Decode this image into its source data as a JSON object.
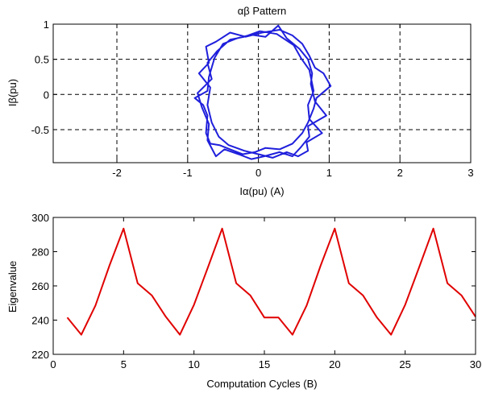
{
  "chart_data": [
    {
      "type": "line",
      "title": "αβ Pattern",
      "xlabel": "Iα(pu)   (A)",
      "ylabel": "Iβ(pu)",
      "xlim": [
        -2.9,
        3.0
      ],
      "ylim": [
        -0.97,
        1.0
      ],
      "xticks": [
        "-2",
        "-1",
        "0",
        "1",
        "2",
        "3"
      ],
      "xtick_values": [
        -2,
        -1,
        0,
        1,
        2,
        3
      ],
      "yticks": [
        "1",
        "0.5",
        "0",
        "-0.5"
      ],
      "ytick_values": [
        1,
        0.5,
        0,
        -0.5
      ],
      "grid": true,
      "grid_style": "dashed",
      "series": [
        {
          "color": "#1f1fdc",
          "x": [
            0.05,
            0.3,
            0.48,
            0.62,
            0.72,
            0.8,
            0.92,
            1.02,
            0.82,
            0.78,
            0.7,
            0.62,
            0.48,
            0.3,
            0.1,
            -0.05,
            -0.22,
            -0.4,
            -0.55,
            -0.68,
            -0.74,
            -0.72,
            -0.78,
            -0.9,
            -0.72,
            -0.7,
            -0.62,
            -0.5,
            -0.3,
            -0.1,
            0.1,
            0.28,
            0.4,
            0.58,
            0.7,
            0.76,
            0.74,
            0.8,
            0.96,
            0.7,
            0.72,
            0.6,
            0.48,
            0.3,
            0.08,
            -0.1,
            -0.28,
            -0.48,
            -0.6,
            -0.72,
            -0.7,
            -0.8,
            -0.86,
            -0.66,
            -0.72,
            -0.58,
            -0.4,
            -0.2,
            0.02,
            0.26,
            0.5,
            0.6,
            0.72,
            0.78,
            0.7,
            0.72,
            0.9,
            0.68,
            0.7,
            0.56,
            0.4,
            0.2,
            0.0,
            -0.2,
            -0.42,
            -0.56,
            -0.66,
            -0.72,
            -0.68,
            -0.84,
            -0.7,
            -0.74,
            -0.6,
            -0.4,
            -0.18,
            0.05
          ],
          "y": [
            0.88,
            0.92,
            0.84,
            0.72,
            0.55,
            0.38,
            0.3,
            0.12,
            -0.05,
            -0.2,
            -0.4,
            -0.55,
            -0.7,
            -0.78,
            -0.76,
            -0.82,
            -0.85,
            -0.78,
            -0.72,
            -0.7,
            -0.55,
            -0.3,
            -0.15,
            -0.05,
            0.05,
            0.25,
            0.52,
            0.72,
            0.8,
            0.85,
            0.82,
            0.98,
            0.8,
            0.65,
            0.5,
            0.3,
            0.15,
            -0.1,
            -0.3,
            -0.45,
            -0.6,
            -0.75,
            -0.88,
            -0.82,
            -0.88,
            -0.92,
            -0.85,
            -0.78,
            -0.88,
            -0.65,
            -0.42,
            -0.18,
            0.02,
            0.22,
            0.45,
            0.62,
            0.78,
            0.82,
            0.9,
            0.86,
            0.7,
            0.52,
            0.35,
            0.05,
            -0.15,
            -0.35,
            -0.55,
            -0.68,
            -0.8,
            -0.88,
            -0.82,
            -0.9,
            -0.85,
            -0.8,
            -0.72,
            -0.6,
            -0.4,
            -0.15,
            0.1,
            0.3,
            0.45,
            0.68,
            0.75,
            0.88,
            0.82,
            0.88
          ]
        }
      ]
    },
    {
      "type": "line",
      "title": "",
      "xlabel": "Computation Cycles    (B)",
      "ylabel": "Eigenvalue",
      "xlim": [
        0,
        30
      ],
      "ylim": [
        220,
        300
      ],
      "xticks": [
        "0",
        "5",
        "10",
        "15",
        "20",
        "25",
        "30"
      ],
      "xtick_values": [
        0,
        5,
        10,
        15,
        20,
        25,
        30
      ],
      "yticks": [
        "300",
        "280",
        "260",
        "240",
        "220"
      ],
      "ytick_values": [
        300,
        280,
        260,
        240,
        220
      ],
      "grid": false,
      "series": [
        {
          "color": "#e00000",
          "x": [
            1,
            2,
            3,
            4,
            5,
            6,
            7,
            8,
            9,
            10,
            11,
            12,
            13,
            14,
            15,
            16,
            17,
            18,
            19,
            20,
            21,
            22,
            23,
            24,
            25,
            26,
            27,
            28,
            29,
            30
          ],
          "y": [
            241.5,
            231.5,
            248.5,
            272,
            293.5,
            261.5,
            254.5,
            242,
            231.5,
            249,
            271,
            293.5,
            261.5,
            254.5,
            241.5,
            241.5,
            231.5,
            248.5,
            272,
            293.5,
            261.5,
            254.5,
            241.5,
            231.5,
            249,
            271,
            293.5,
            261.5,
            254.5,
            242
          ]
        }
      ]
    }
  ]
}
